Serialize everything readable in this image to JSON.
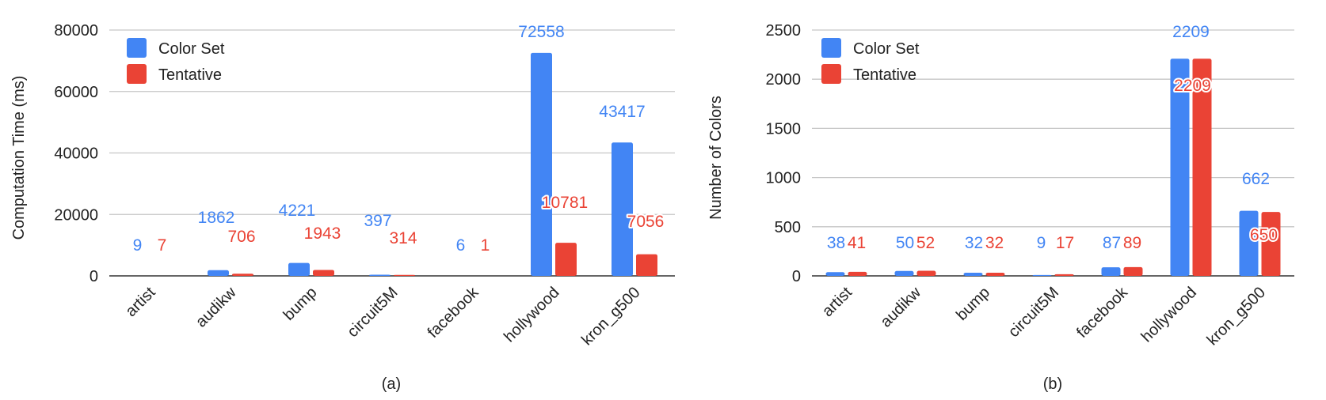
{
  "colors": {
    "color_set": "#4285f4",
    "tentative": "#ea4335",
    "grid": "#c6c6c6",
    "axis": "#333333"
  },
  "chart_data": [
    {
      "type": "bar",
      "panel_label": "(a)",
      "ylabel": "Computation Time (ms)",
      "xlabel": "",
      "ylim": [
        0,
        80000
      ],
      "yticks": [
        0,
        20000,
        40000,
        60000,
        80000
      ],
      "grid": true,
      "legend_position": "top-left",
      "categories": [
        "artist",
        "audikw",
        "bump",
        "circuit5M",
        "facebook",
        "hollywood",
        "kron_g500"
      ],
      "series": [
        {
          "name": "Color Set",
          "values": [
            9,
            1862,
            4221,
            397,
            6,
            72558,
            43417
          ]
        },
        {
          "name": "Tentative",
          "values": [
            7,
            706,
            1943,
            314,
            1,
            10781,
            7056
          ]
        }
      ]
    },
    {
      "type": "bar",
      "panel_label": "(b)",
      "ylabel": "Number of Colors",
      "xlabel": "",
      "ylim": [
        0,
        2500
      ],
      "yticks": [
        0,
        500,
        1000,
        1500,
        2000,
        2500
      ],
      "grid": true,
      "legend_position": "top-left",
      "categories": [
        "artist",
        "audikw",
        "bump",
        "circuit5M",
        "facebook",
        "hollywood",
        "kron_g500"
      ],
      "series": [
        {
          "name": "Color Set",
          "values": [
            38,
            50,
            32,
            9,
            87,
            2209,
            662
          ]
        },
        {
          "name": "Tentative",
          "values": [
            41,
            52,
            32,
            17,
            89,
            2209,
            650
          ]
        }
      ]
    }
  ]
}
